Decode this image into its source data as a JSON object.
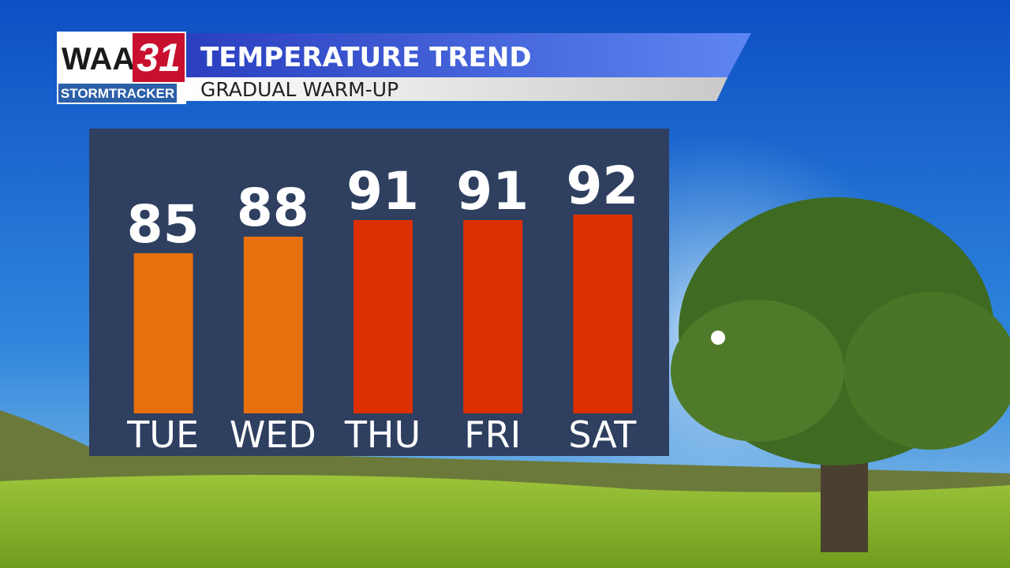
{
  "logo": {
    "station": "WAAY",
    "channel": "31",
    "brand": "STORMTRACKER"
  },
  "chart_data": {
    "type": "bar",
    "title": "TEMPERATURE TREND",
    "subtitle": "GRADUAL WARM-UP",
    "categories": [
      "TUE",
      "WED",
      "THU",
      "FRI",
      "SAT"
    ],
    "values": [
      85,
      88,
      91,
      91,
      92
    ],
    "colors": [
      "#e8700c",
      "#e8700c",
      "#dc3003",
      "#dc3003",
      "#dc3003"
    ],
    "ylim": [
      56,
      100
    ]
  }
}
